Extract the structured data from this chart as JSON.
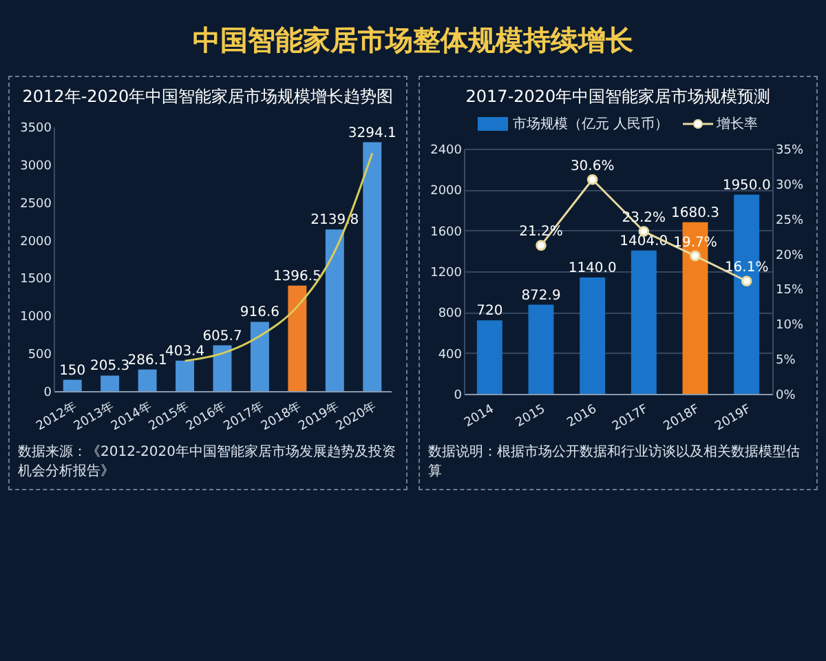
{
  "chart_data": [
    {
      "type": "other",
      "title": "中国智能家居市场整体规模持续增长"
    },
    {
      "type": "bar",
      "title": "2012年-2020年中国智能家居市场规模增长趋势图",
      "categories": [
        "2012年",
        "2013年",
        "2014年",
        "2015年",
        "2016年",
        "2017年",
        "2018年",
        "2019年",
        "2020年"
      ],
      "series": [
        {
          "colors": [
            "#4a94dc",
            "#4a94dc",
            "#4a94dc",
            "#4a94dc",
            "#4a94dc",
            "#4a94dc",
            "#f07f2a",
            "#4a94dc",
            "#4a94dc"
          ],
          "values": [
            150,
            205.3,
            286.1,
            403.4,
            605.7,
            916.6,
            1396.5,
            2139.8,
            3294.1
          ],
          "value_labels": [
            "150",
            "205.3",
            "286.1",
            "403.4",
            "605.7",
            "916.6",
            "1396.5",
            "2139.8",
            "3294.1"
          ]
        },
        {
          "type": "line",
          "color": "#d8cc5a",
          "values": [
            null,
            null,
            null,
            400,
            500,
            730,
            1120,
            1850,
            3150
          ]
        }
      ],
      "ylim": [
        0,
        3500
      ],
      "yticks": [
        0,
        500,
        1000,
        1500,
        2000,
        2500,
        3000,
        3500
      ],
      "annotations": [
        "数据来源：《2012-2020年中国智能家居市场发展趋势及投资机会分析报告》"
      ]
    },
    {
      "type": "bar",
      "title": "2017-2020年中国智能家居市场规模预测",
      "categories": [
        "2014",
        "2015",
        "2016",
        "2017F",
        "2018F",
        "2019F"
      ],
      "series": [
        {
          "name": "市场规模（亿元 人民币）",
          "color": "#1a74c9",
          "colors": [
            "#1a74c9",
            "#1a74c9",
            "#1a74c9",
            "#1a74c9",
            "#f0801e",
            "#1a74c9"
          ],
          "values": [
            720,
            872.9,
            1140.0,
            1404.0,
            1680.3,
            1950.0
          ],
          "value_labels": [
            "720",
            "872.9",
            "1140.0",
            "1404.0",
            "1680.3",
            "1950.0"
          ]
        },
        {
          "name": "增长率",
          "type": "line",
          "axis": "y2",
          "color": "#e8d9a0",
          "values": [
            null,
            21.2,
            30.6,
            23.2,
            19.7,
            16.1
          ],
          "value_labels": [
            null,
            "21.2%",
            "30.6%",
            "23.2%",
            "19.7%",
            "16.1%"
          ]
        }
      ],
      "ylim": [
        0,
        2400
      ],
      "yticks": [
        0,
        400,
        800,
        1200,
        1600,
        2000,
        2400
      ],
      "y2lim": [
        0,
        35
      ],
      "y2ticks": [
        {
          "value": 0,
          "label": "0%"
        },
        {
          "value": 5,
          "label": "5%"
        },
        {
          "value": 10,
          "label": "10%"
        },
        {
          "value": 15,
          "label": "15%"
        },
        {
          "value": 20,
          "label": "20%"
        },
        {
          "value": 25,
          "label": "25%"
        },
        {
          "value": 30,
          "label": "30%"
        },
        {
          "value": 35,
          "label": "35%"
        }
      ],
      "grid": "y",
      "legend": "top",
      "marker": "circle",
      "annotations": [
        "数据说明：根据市场公开数据和行业访谈以及相关数据模型估算"
      ]
    }
  ]
}
